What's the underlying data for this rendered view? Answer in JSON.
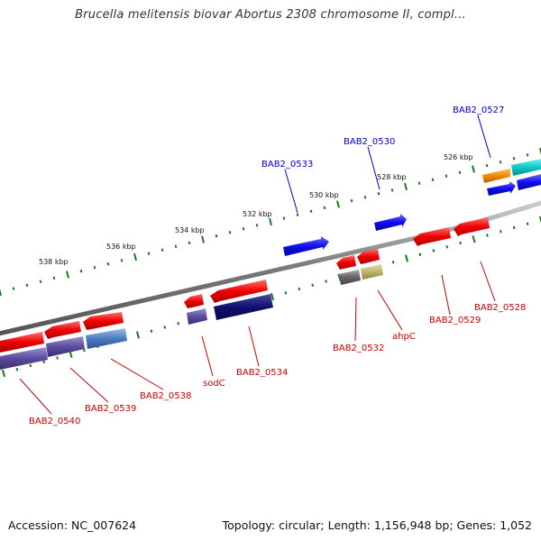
{
  "title": "Brucella melitensis biovar Abortus 2308 chromosome II, compl...",
  "footer": {
    "accession": "Accession: NC_007624",
    "summary": "Topology: circular; Length: 1,156,948 bp; Genes: 1,052"
  },
  "colors": {
    "forward_label": "#0000cc",
    "reverse_label": "#cc0000",
    "backbone": "#777777",
    "tick": "#1a7a1a"
  },
  "tick_labels": [
    "526 kbp",
    "528 kbp",
    "530 kbp",
    "532 kbp",
    "534 kbp",
    "536 kbp",
    "538 kbp"
  ],
  "forward_gene_labels": [
    "BAB2_0527",
    "BAB2_0530",
    "BAB2_0533"
  ],
  "reverse_gene_labels": [
    "BAB2_0528",
    "BAB2_0529",
    "ahpC",
    "BAB2_0532",
    "BAB2_0534",
    "sodC",
    "BAB2_0538",
    "BAB2_0539",
    "BAB2_0540"
  ]
}
